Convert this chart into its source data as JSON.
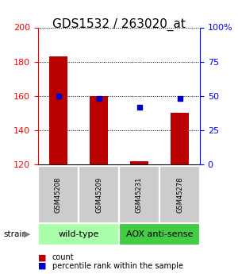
{
  "title": "GDS1532 / 263020_at",
  "samples": [
    "GSM45208",
    "GSM45209",
    "GSM45231",
    "GSM45278"
  ],
  "count_values": [
    183,
    160,
    122,
    150
  ],
  "percentile_values": [
    50,
    48,
    42,
    48
  ],
  "ylim_left": [
    120,
    200
  ],
  "ylim_right": [
    0,
    100
  ],
  "yticks_left": [
    120,
    140,
    160,
    180,
    200
  ],
  "yticks_right": [
    0,
    25,
    50,
    75,
    100
  ],
  "ytick_labels_right": [
    "0",
    "25",
    "50",
    "75",
    "100%"
  ],
  "bar_color": "#bb0000",
  "dot_color": "#0000cc",
  "groups": [
    {
      "label": "wild-type",
      "start": 0,
      "end": 2,
      "color": "#aaffaa"
    },
    {
      "label": "AOX anti-sense",
      "start": 2,
      "end": 4,
      "color": "#44cc44"
    }
  ],
  "strain_label": "strain",
  "legend_count_label": "count",
  "legend_pct_label": "percentile rank within the sample",
  "title_fontsize": 11,
  "tick_fontsize": 8,
  "sample_fontsize": 6,
  "group_fontsize": 8,
  "bar_width": 0.45,
  "sample_box_color": "#cccccc",
  "background_color": "#ffffff"
}
